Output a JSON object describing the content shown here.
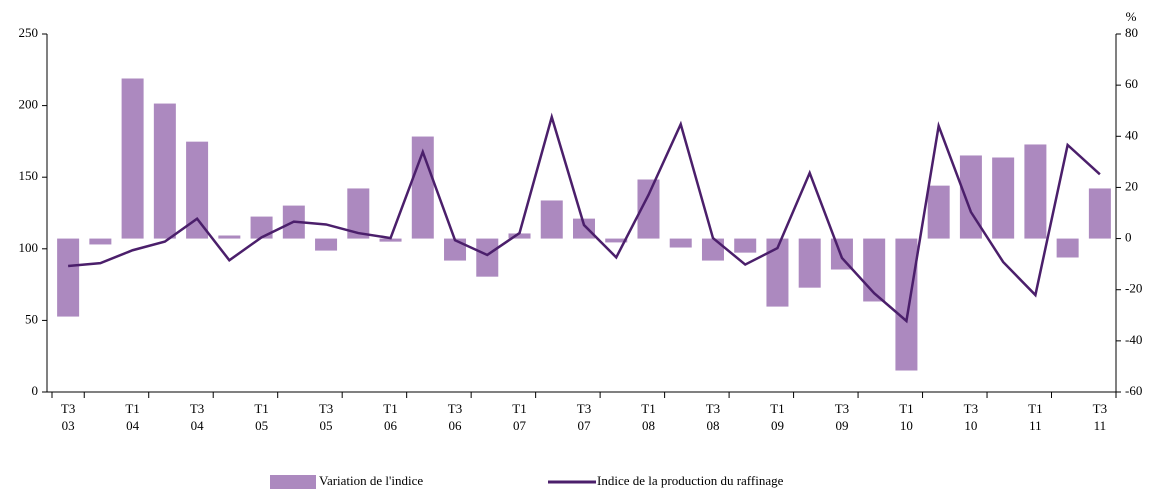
{
  "chart_data": {
    "type": "bar-line",
    "categories": [
      "T3\n03",
      null,
      "T1\n04",
      null,
      "T3\n04",
      null,
      "T1\n05",
      null,
      "T3\n05",
      null,
      "T1\n06",
      null,
      "T3\n06",
      null,
      "T1\n07",
      null,
      "T3\n07",
      null,
      "T1\n08",
      null,
      "T3\n08",
      null,
      "T1\n09",
      null,
      "T3\n09",
      null,
      "T1\n10",
      null,
      "T3\n10",
      null,
      "T1\n11",
      null,
      "T3\n11"
    ],
    "series": [
      {
        "name": "Variation de l'indice",
        "type": "bar",
        "axis": "y2",
        "color": "#ac89bf",
        "values": [
          -30.5,
          -2.3,
          62.6,
          52.8,
          37.9,
          1.2,
          8.6,
          12.9,
          -4.7,
          19.6,
          -1.2,
          39.9,
          -8.6,
          -14.9,
          2,
          14.9,
          7.8,
          -1.5,
          23.1,
          -3.5,
          -8.6,
          -5.5,
          -26.6,
          -19.2,
          -12.1,
          -24.6,
          -51.6,
          20.7,
          32.5,
          31.7,
          36.8,
          -7.4,
          19.6
        ]
      },
      {
        "name": "Indice de la production du raffinage",
        "type": "line",
        "color": "#4b1f6b",
        "values": [
          88,
          90,
          99,
          105,
          121,
          92,
          108,
          119,
          117,
          111,
          107.5,
          167.6,
          106,
          95.7,
          111,
          192,
          116.6,
          94,
          137.6,
          187,
          107.5,
          89,
          100.5,
          153,
          93.6,
          69,
          49.6,
          185.8,
          125.7,
          90.8,
          67.7,
          172.5,
          152
        ]
      }
    ],
    "ylim": [
      0,
      250
    ],
    "yticks": [
      0,
      50,
      100,
      150,
      200,
      250
    ],
    "y2label": "%",
    "y2lim": [
      -60,
      80
    ],
    "y2ticks": [
      -60,
      -40,
      -20,
      0,
      20,
      40,
      60,
      80
    ],
    "grid": false
  }
}
